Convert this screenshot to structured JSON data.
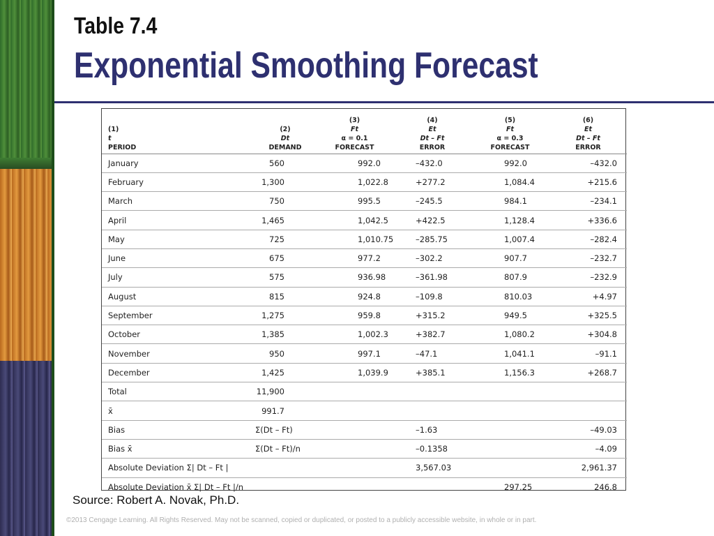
{
  "slide": {
    "table_number": "Table 7.4",
    "title": "Exponential Smoothing Forecast",
    "source": "Source: Robert A. Novak, Ph.D.",
    "copyright": "©2013 Cengage Learning. All Rights Reserved. May not be scanned, copied or duplicated, or posted to a publicly accessible website, in whole or in part."
  },
  "colors": {
    "title": "#2e3070",
    "rule": "#2e3070"
  },
  "table": {
    "headers": [
      [
        "(1)",
        "t",
        "PERIOD"
      ],
      [
        "(2)",
        "Dt",
        "DEMAND"
      ],
      [
        "(3)",
        "Ft",
        "α = 0.1",
        "FORECAST"
      ],
      [
        "(4)",
        "Et",
        "Dt – Ft",
        "ERROR"
      ],
      [
        "(5)",
        "Ft",
        "α = 0.3",
        "FORECAST"
      ],
      [
        "(6)",
        "Et",
        "Dt – Ft",
        "ERROR"
      ]
    ],
    "rows": [
      [
        "January",
        "560",
        "992.0",
        "–432.0",
        "992.0",
        "–432.0"
      ],
      [
        "February",
        "1,300",
        "1,022.8",
        "+277.2",
        "1,084.4",
        "+215.6"
      ],
      [
        "March",
        "750",
        "995.5",
        "–245.5",
        "984.1",
        "–234.1"
      ],
      [
        "April",
        "1,465",
        "1,042.5",
        "+422.5",
        "1,128.4",
        "+336.6"
      ],
      [
        "May",
        "725",
        "1,010.75",
        "–285.75",
        "1,007.4",
        "–282.4"
      ],
      [
        "June",
        "675",
        "977.2",
        "–302.2",
        "907.7",
        "–232.7"
      ],
      [
        "July",
        "575",
        "936.98",
        "–361.98",
        "807.9",
        "–232.9"
      ],
      [
        "August",
        "815",
        "924.8",
        "–109.8",
        "810.03",
        "+4.97"
      ],
      [
        "September",
        "1,275",
        "959.8",
        "+315.2",
        "949.5",
        "+325.5"
      ],
      [
        "October",
        "1,385",
        "1,002.3",
        "+382.7",
        "1,080.2",
        "+304.8"
      ],
      [
        "November",
        "950",
        "997.1",
        "–47.1",
        "1,041.1",
        "–91.1"
      ],
      [
        "December",
        "1,425",
        "1,039.9",
        "+385.1",
        "1,156.3",
        "+268.7"
      ],
      [
        "Total",
        "11,900",
        "",
        "",
        "",
        ""
      ],
      [
        "x̄",
        "991.7",
        "",
        "",
        "",
        ""
      ],
      [
        "Bias",
        "Σ(Dt – Ft)",
        "",
        "–1.63",
        "",
        "–49.03"
      ],
      [
        "Bias x̄",
        "Σ(Dt – Ft)/n",
        "",
        "–0.1358",
        "",
        "–4.09"
      ],
      [
        "Absolute Deviation Σ| Dt – Ft |",
        "",
        "",
        "3,567.03",
        "",
        "2,961.37"
      ],
      [
        "Absolute Deviation x̄ Σ| Dt – Ft |/n",
        "",
        "",
        "",
        "297.25",
        "246.8"
      ]
    ]
  }
}
